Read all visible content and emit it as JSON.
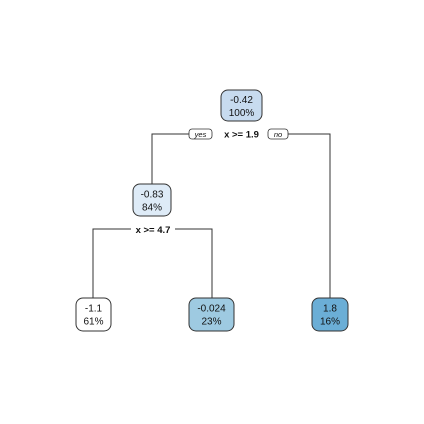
{
  "tree": {
    "root": {
      "value": "-0.42",
      "percent": "100%",
      "fill": "#c7dbef"
    },
    "split_root": {
      "label": "x >= 1.9",
      "yes": "yes",
      "no": "no"
    },
    "node_left": {
      "value": "-0.83",
      "percent": "84%",
      "fill": "#deebf7"
    },
    "split_left": {
      "label": "x >= 4.7"
    },
    "leaf_1": {
      "value": "-1.1",
      "percent": "61%",
      "fill": "#ffffff"
    },
    "leaf_2": {
      "value": "-0.024",
      "percent": "23%",
      "fill": "#9ecae1"
    },
    "leaf_3": {
      "value": "1.8",
      "percent": "16%",
      "fill": "#6baed6"
    }
  }
}
